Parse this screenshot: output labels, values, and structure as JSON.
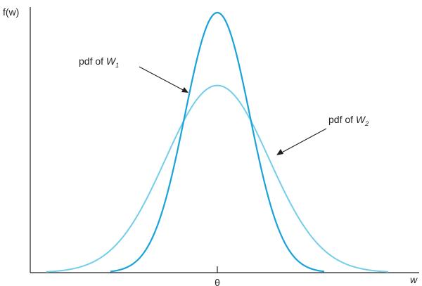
{
  "chart_data": {
    "type": "line",
    "ylabel": "f(w)",
    "xlabel": "w",
    "x_ticks": [
      {
        "value": 0,
        "label": "θ"
      }
    ],
    "xlim": [
      -3,
      3
    ],
    "ylim": [
      0,
      1
    ],
    "grid": false,
    "series": [
      {
        "name": "pdf of W1",
        "label_text": "pdf of ",
        "label_var": "W",
        "label_sub": "1",
        "color": "#1aa3d9",
        "center": 0,
        "spread": 0.5,
        "peak": 1.0
      },
      {
        "name": "pdf of W2",
        "label_text": "pdf of ",
        "label_var": "W",
        "label_sub": "2",
        "color": "#74cde9",
        "center": 0,
        "spread": 0.8,
        "peak": 0.72
      }
    ]
  }
}
